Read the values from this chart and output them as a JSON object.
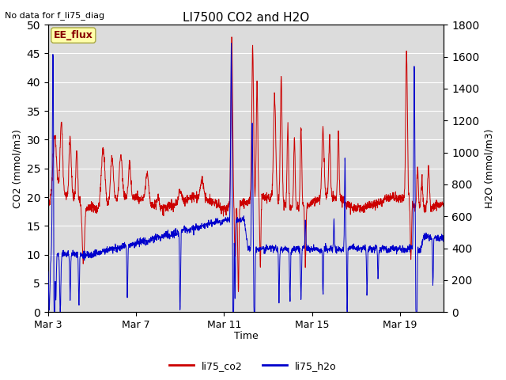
{
  "title": "LI7500 CO2 and H2O",
  "top_left_text": "No data for f_li75_diag",
  "xlabel": "Time",
  "ylabel_left": "CO2 (mmol/m3)",
  "ylabel_right": "H2O (mmol/m3)",
  "annotation": "EE_flux",
  "legend_entries": [
    "li75_co2",
    "li75_h2o"
  ],
  "co2_color": "#cc0000",
  "h2o_color": "#0000cc",
  "ylim_left": [
    0,
    50
  ],
  "ylim_right": [
    0,
    1800
  ],
  "background_color": "#dcdcdc",
  "xtick_labels": [
    "Mar 3",
    "Mar 7",
    "Mar 11",
    "Mar 15",
    "Mar 19"
  ],
  "xtick_positions": [
    0,
    4,
    8,
    12,
    16
  ],
  "n_days": 18,
  "n_points": 2000,
  "figsize": [
    6.4,
    4.8
  ],
  "dpi": 100
}
